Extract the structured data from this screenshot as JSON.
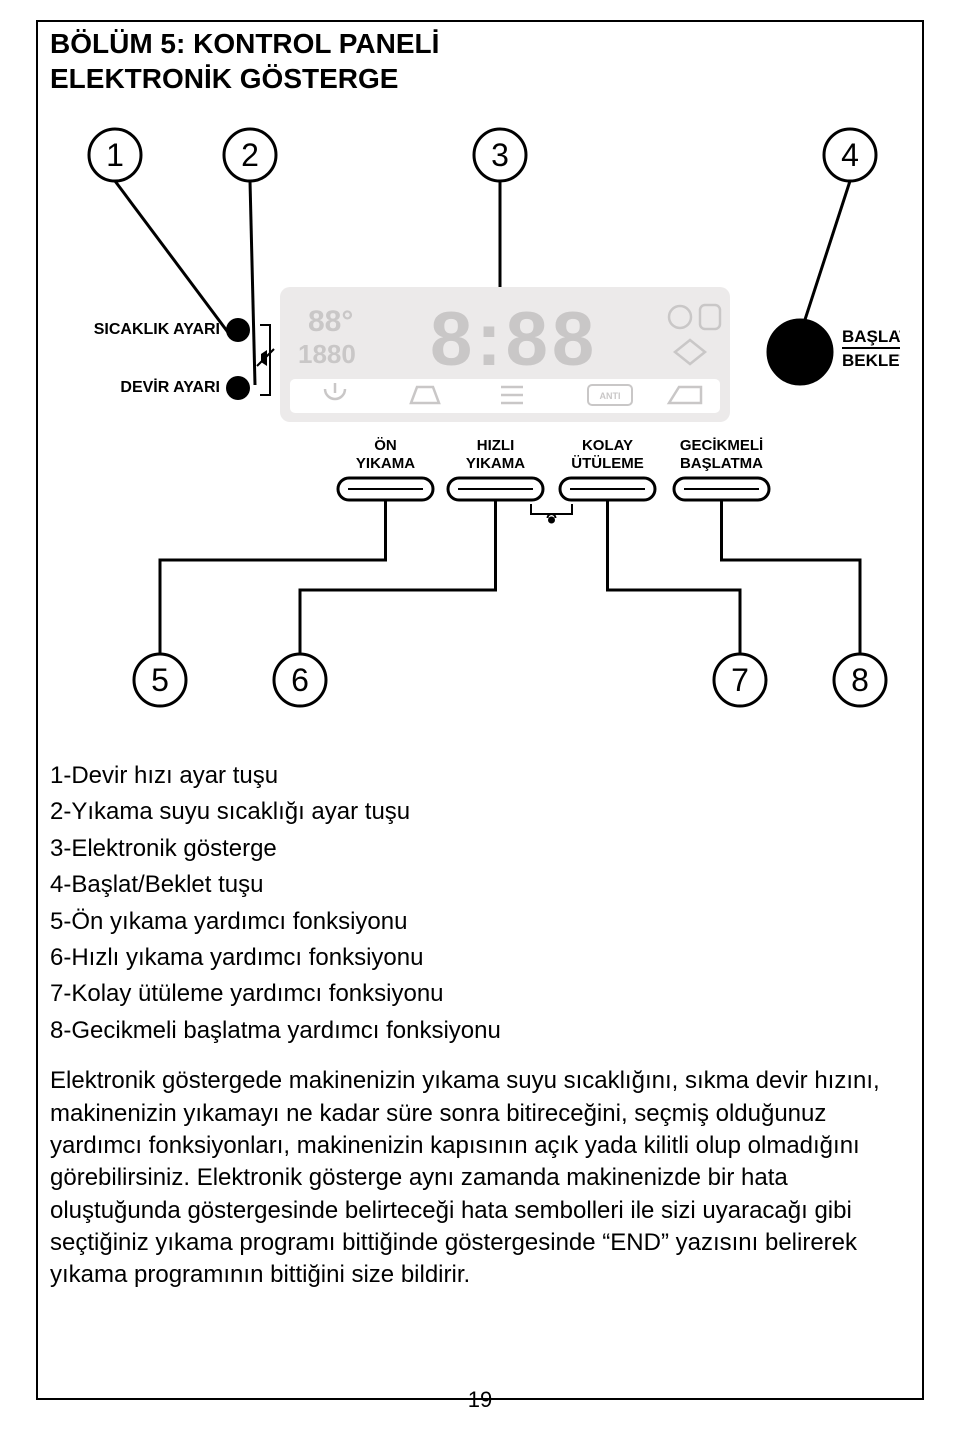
{
  "heading": {
    "line1": "BÖLÜM 5: KONTROL PANELİ",
    "line2": "ELEKTRONİK GÖSTERGE"
  },
  "diagram": {
    "callouts_top": [
      "1",
      "2",
      "3",
      "4"
    ],
    "callouts_bottom": [
      "5",
      "6",
      "7",
      "8"
    ],
    "left_labels": {
      "temp": "SICAKLIK AYARI",
      "spin": "DEVİR AYARI"
    },
    "right_label": {
      "line1": "BAŞLAT",
      "line2": "BEKLET"
    },
    "option_buttons": [
      {
        "line1": "ÖN",
        "line2": "YIKAMA"
      },
      {
        "line1": "HIZLI",
        "line2": "YIKAMA"
      },
      {
        "line1": "KOLAY",
        "line2": "ÜTÜLEME"
      },
      {
        "line1": "GECİKMELİ",
        "line2": "BAŞLATMA"
      }
    ],
    "lcd_text": {
      "temp": "88",
      "spin": "1880",
      "time": "8:88"
    },
    "colors": {
      "stroke": "#000000",
      "fill_black": "#000000",
      "lcd_bg": "#eceaea",
      "lcd_row_bg": "#ffffff",
      "lcd_fg": "#c9c7c7"
    },
    "stroke_width": 3,
    "circle_radius": 26,
    "big_button_radius": 32,
    "small_knob_radius": 12,
    "option_btn_w": 95,
    "option_btn_h": 22,
    "option_btn_rx": 11
  },
  "list_items": [
    "1-Devir hızı ayar tuşu",
    "2-Yıkama suyu sıcaklığı ayar tuşu",
    "3-Elektronik gösterge",
    "4-Başlat/Beklet tuşu",
    "5-Ön yıkama yardımcı fonksiyonu",
    "6-Hızlı yıkama yardımcı fonksiyonu",
    "7-Kolay ütüleme yardımcı fonksiyonu",
    "8-Gecikmeli başlatma yardımcı fonksiyonu"
  ],
  "paragraph": "Elektronik göstergede makinenizin yıkama suyu sıcaklığını, sıkma devir hızını, makinenizin yıkamayı ne kadar süre sonra bitireceğini, seçmiş olduğunuz yardımcı fonksiyonları, makinenizin kapısının açık yada kilitli olup olmadığını görebilirsiniz. Elektronik gösterge aynı zamanda makinenizde bir hata oluştuğunda göstergesinde belirteceği hata sembolleri ile sizi uyaracağı gibi seçtiğiniz yıkama programı bittiğinde göstergesinde “END” yazısını belirerek yıkama programının bittiğini size bildirir.",
  "page_number": "19"
}
